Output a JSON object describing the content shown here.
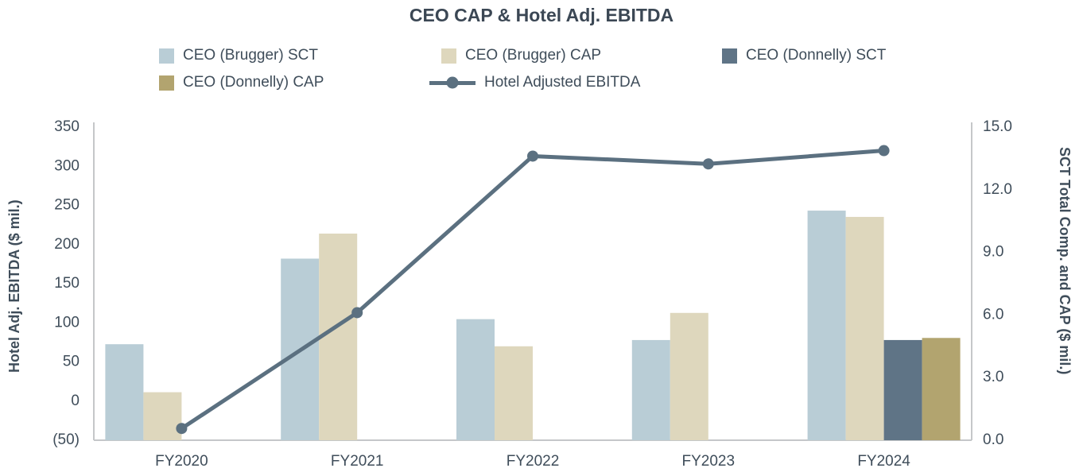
{
  "title": "CEO CAP & Hotel Adj. EBITDA",
  "colors": {
    "brugger_sct": "#b9cdd6",
    "brugger_cap": "#ded7bd",
    "donnelly_sct": "#5f7486",
    "donnelly_cap": "#b2a46f",
    "line": "#5b7080",
    "text": "#3f4d5a",
    "axis": "#c5c7c9"
  },
  "legend": {
    "row1": [
      {
        "label": "CEO (Brugger) SCT",
        "color": "#b9cdd6",
        "type": "box"
      },
      {
        "label": "CEO (Brugger) CAP",
        "color": "#ded7bd",
        "type": "box"
      },
      {
        "label": "CEO (Donnelly) SCT",
        "color": "#5f7486",
        "type": "box"
      }
    ],
    "row2": [
      {
        "label": "CEO (Donnelly) CAP",
        "color": "#b2a46f",
        "type": "box"
      },
      {
        "label": "Hotel Adjusted EBITDA",
        "color": "#5b7080",
        "type": "line"
      }
    ]
  },
  "left_axis": {
    "title": "Hotel Adj. EBITDA ($ mil.)",
    "min": -50,
    "max": 350,
    "ticks": [
      {
        "label": "350",
        "value": 350
      },
      {
        "label": "300",
        "value": 300
      },
      {
        "label": "250",
        "value": 250
      },
      {
        "label": "200",
        "value": 200
      },
      {
        "label": "150",
        "value": 150
      },
      {
        "label": "100",
        "value": 100
      },
      {
        "label": "50",
        "value": 50
      },
      {
        "label": "0",
        "value": 0
      },
      {
        "label": "(50)",
        "value": -50
      }
    ]
  },
  "right_axis": {
    "title": "SCT Total Comp. and CAP ($ mil.)",
    "min": 0,
    "max": 15,
    "ticks": [
      {
        "label": "15.0",
        "value": 15
      },
      {
        "label": "12.0",
        "value": 12
      },
      {
        "label": "9.0",
        "value": 9
      },
      {
        "label": "6.0",
        "value": 6
      },
      {
        "label": "3.0",
        "value": 3
      },
      {
        "label": "0.0",
        "value": 0
      }
    ]
  },
  "chart_data": {
    "type": "bar",
    "subtype": "grouped bars with overlaid line, dual y-axes",
    "title": "CEO CAP & Hotel Adj. EBITDA",
    "categories": [
      "FY2020",
      "FY2021",
      "FY2022",
      "FY2023",
      "FY2024"
    ],
    "bar_series": [
      {
        "name": "CEO (Brugger) SCT",
        "axis": "right",
        "color": "#b9cdd6",
        "values": [
          4.6,
          8.7,
          5.8,
          4.8,
          11.0
        ]
      },
      {
        "name": "CEO (Brugger) CAP",
        "axis": "right",
        "color": "#ded7bd",
        "values": [
          2.3,
          9.9,
          4.5,
          6.1,
          10.7
        ]
      },
      {
        "name": "CEO (Donnelly) SCT",
        "axis": "right",
        "color": "#5f7486",
        "values": [
          null,
          null,
          null,
          null,
          4.8
        ]
      },
      {
        "name": "CEO (Donnelly) CAP",
        "axis": "right",
        "color": "#b2a46f",
        "values": [
          null,
          null,
          null,
          null,
          4.9
        ]
      }
    ],
    "line_series": [
      {
        "name": "Hotel Adjusted EBITDA",
        "axis": "left",
        "color": "#5b7080",
        "values": [
          -35,
          113,
          313,
          303,
          320
        ]
      }
    ],
    "left_ylabel": "Hotel Adj. EBITDA ($ mil.)",
    "right_ylabel": "SCT Total Comp. and CAP ($ mil.)",
    "left_ylim": [
      -50,
      350
    ],
    "right_ylim": [
      0,
      15
    ],
    "grid": false,
    "legend_position": "top"
  }
}
